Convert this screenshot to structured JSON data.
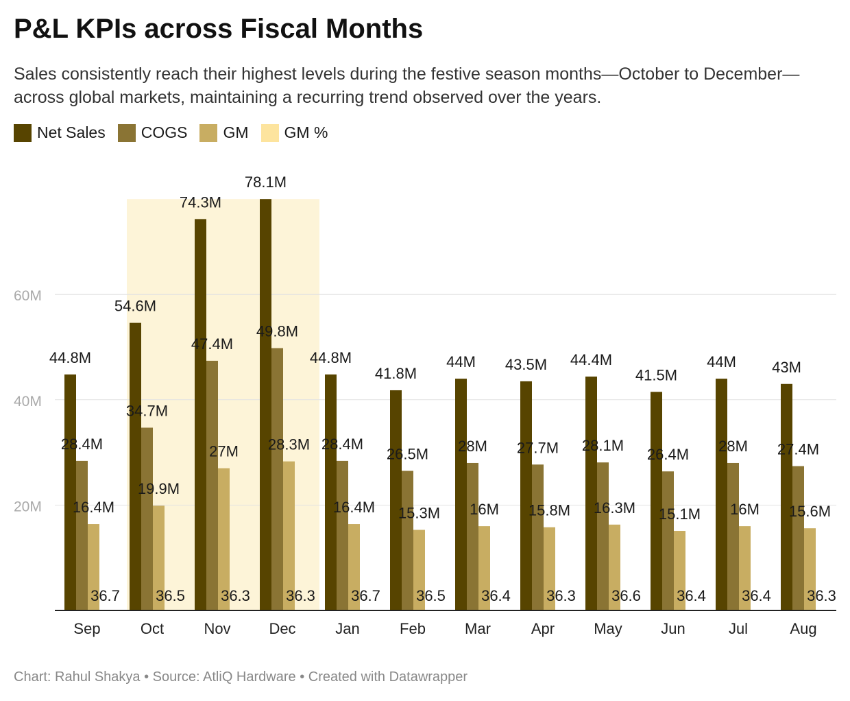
{
  "title": "P&L KPIs across Fiscal Months",
  "subtitle": "Sales consistently reach their highest levels during the festive season months—October to December—across global markets, maintaining a recurring trend observed over the years.",
  "footer": "Chart: Rahul Shakya • Source: AtliQ Hardware • Created with Datawrapper",
  "colors": {
    "net_sales": "#574400",
    "cogs": "#8a7434",
    "gm": "#c8ad62",
    "gm_pct": "#fde49e",
    "highlight": "#fdf4d8",
    "grid": "#e2e2e2",
    "axis_text": "#aaaaaa"
  },
  "chart_data": {
    "type": "bar",
    "categories": [
      "Sep",
      "Oct",
      "Nov",
      "Dec",
      "Jan",
      "Feb",
      "Mar",
      "Apr",
      "May",
      "Jun",
      "Jul",
      "Aug"
    ],
    "series": [
      {
        "name": "Net Sales",
        "values": [
          44.8,
          54.6,
          74.3,
          78.1,
          44.8,
          41.8,
          44,
          43.5,
          44.4,
          41.5,
          44,
          43
        ],
        "labels": [
          "44.8M",
          "54.6M",
          "74.3M",
          "78.1M",
          "44.8M",
          "41.8M",
          "44M",
          "43.5M",
          "44.4M",
          "41.5M",
          "44M",
          "43M"
        ]
      },
      {
        "name": "COGS",
        "values": [
          28.4,
          34.7,
          47.4,
          49.8,
          28.4,
          26.5,
          28,
          27.7,
          28.1,
          26.4,
          28,
          27.4
        ],
        "labels": [
          "28.4M",
          "34.7M",
          "47.4M",
          "49.8M",
          "28.4M",
          "26.5M",
          "28M",
          "27.7M",
          "28.1M",
          "26.4M",
          "28M",
          "27.4M"
        ]
      },
      {
        "name": "GM",
        "values": [
          16.4,
          19.9,
          27,
          28.3,
          16.4,
          15.3,
          16,
          15.8,
          16.3,
          15.1,
          16,
          15.6
        ],
        "labels": [
          "16.4M",
          "19.9M",
          "27M",
          "28.3M",
          "16.4M",
          "15.3M",
          "16M",
          "15.8M",
          "16.3M",
          "15.1M",
          "16M",
          "15.6M"
        ]
      },
      {
        "name": "GM %",
        "values": [
          36.7,
          36.5,
          36.3,
          36.3,
          36.7,
          36.5,
          36.4,
          36.3,
          36.6,
          36.4,
          36.4,
          36.3
        ],
        "labels": [
          "36.7",
          "36.5",
          "36.3",
          "36.3",
          "36.7",
          "36.5",
          "36.4",
          "36.3",
          "36.6",
          "36.4",
          "36.4",
          "36.3"
        ]
      }
    ],
    "yticks": [
      {
        "value": 20,
        "label": "20M"
      },
      {
        "value": 40,
        "label": "40M"
      },
      {
        "value": 60,
        "label": "60M"
      }
    ],
    "ylim": [
      0,
      78.1
    ],
    "highlight_categories": [
      "Oct",
      "Nov",
      "Dec"
    ],
    "grid": true,
    "legend_position": "top-left"
  }
}
